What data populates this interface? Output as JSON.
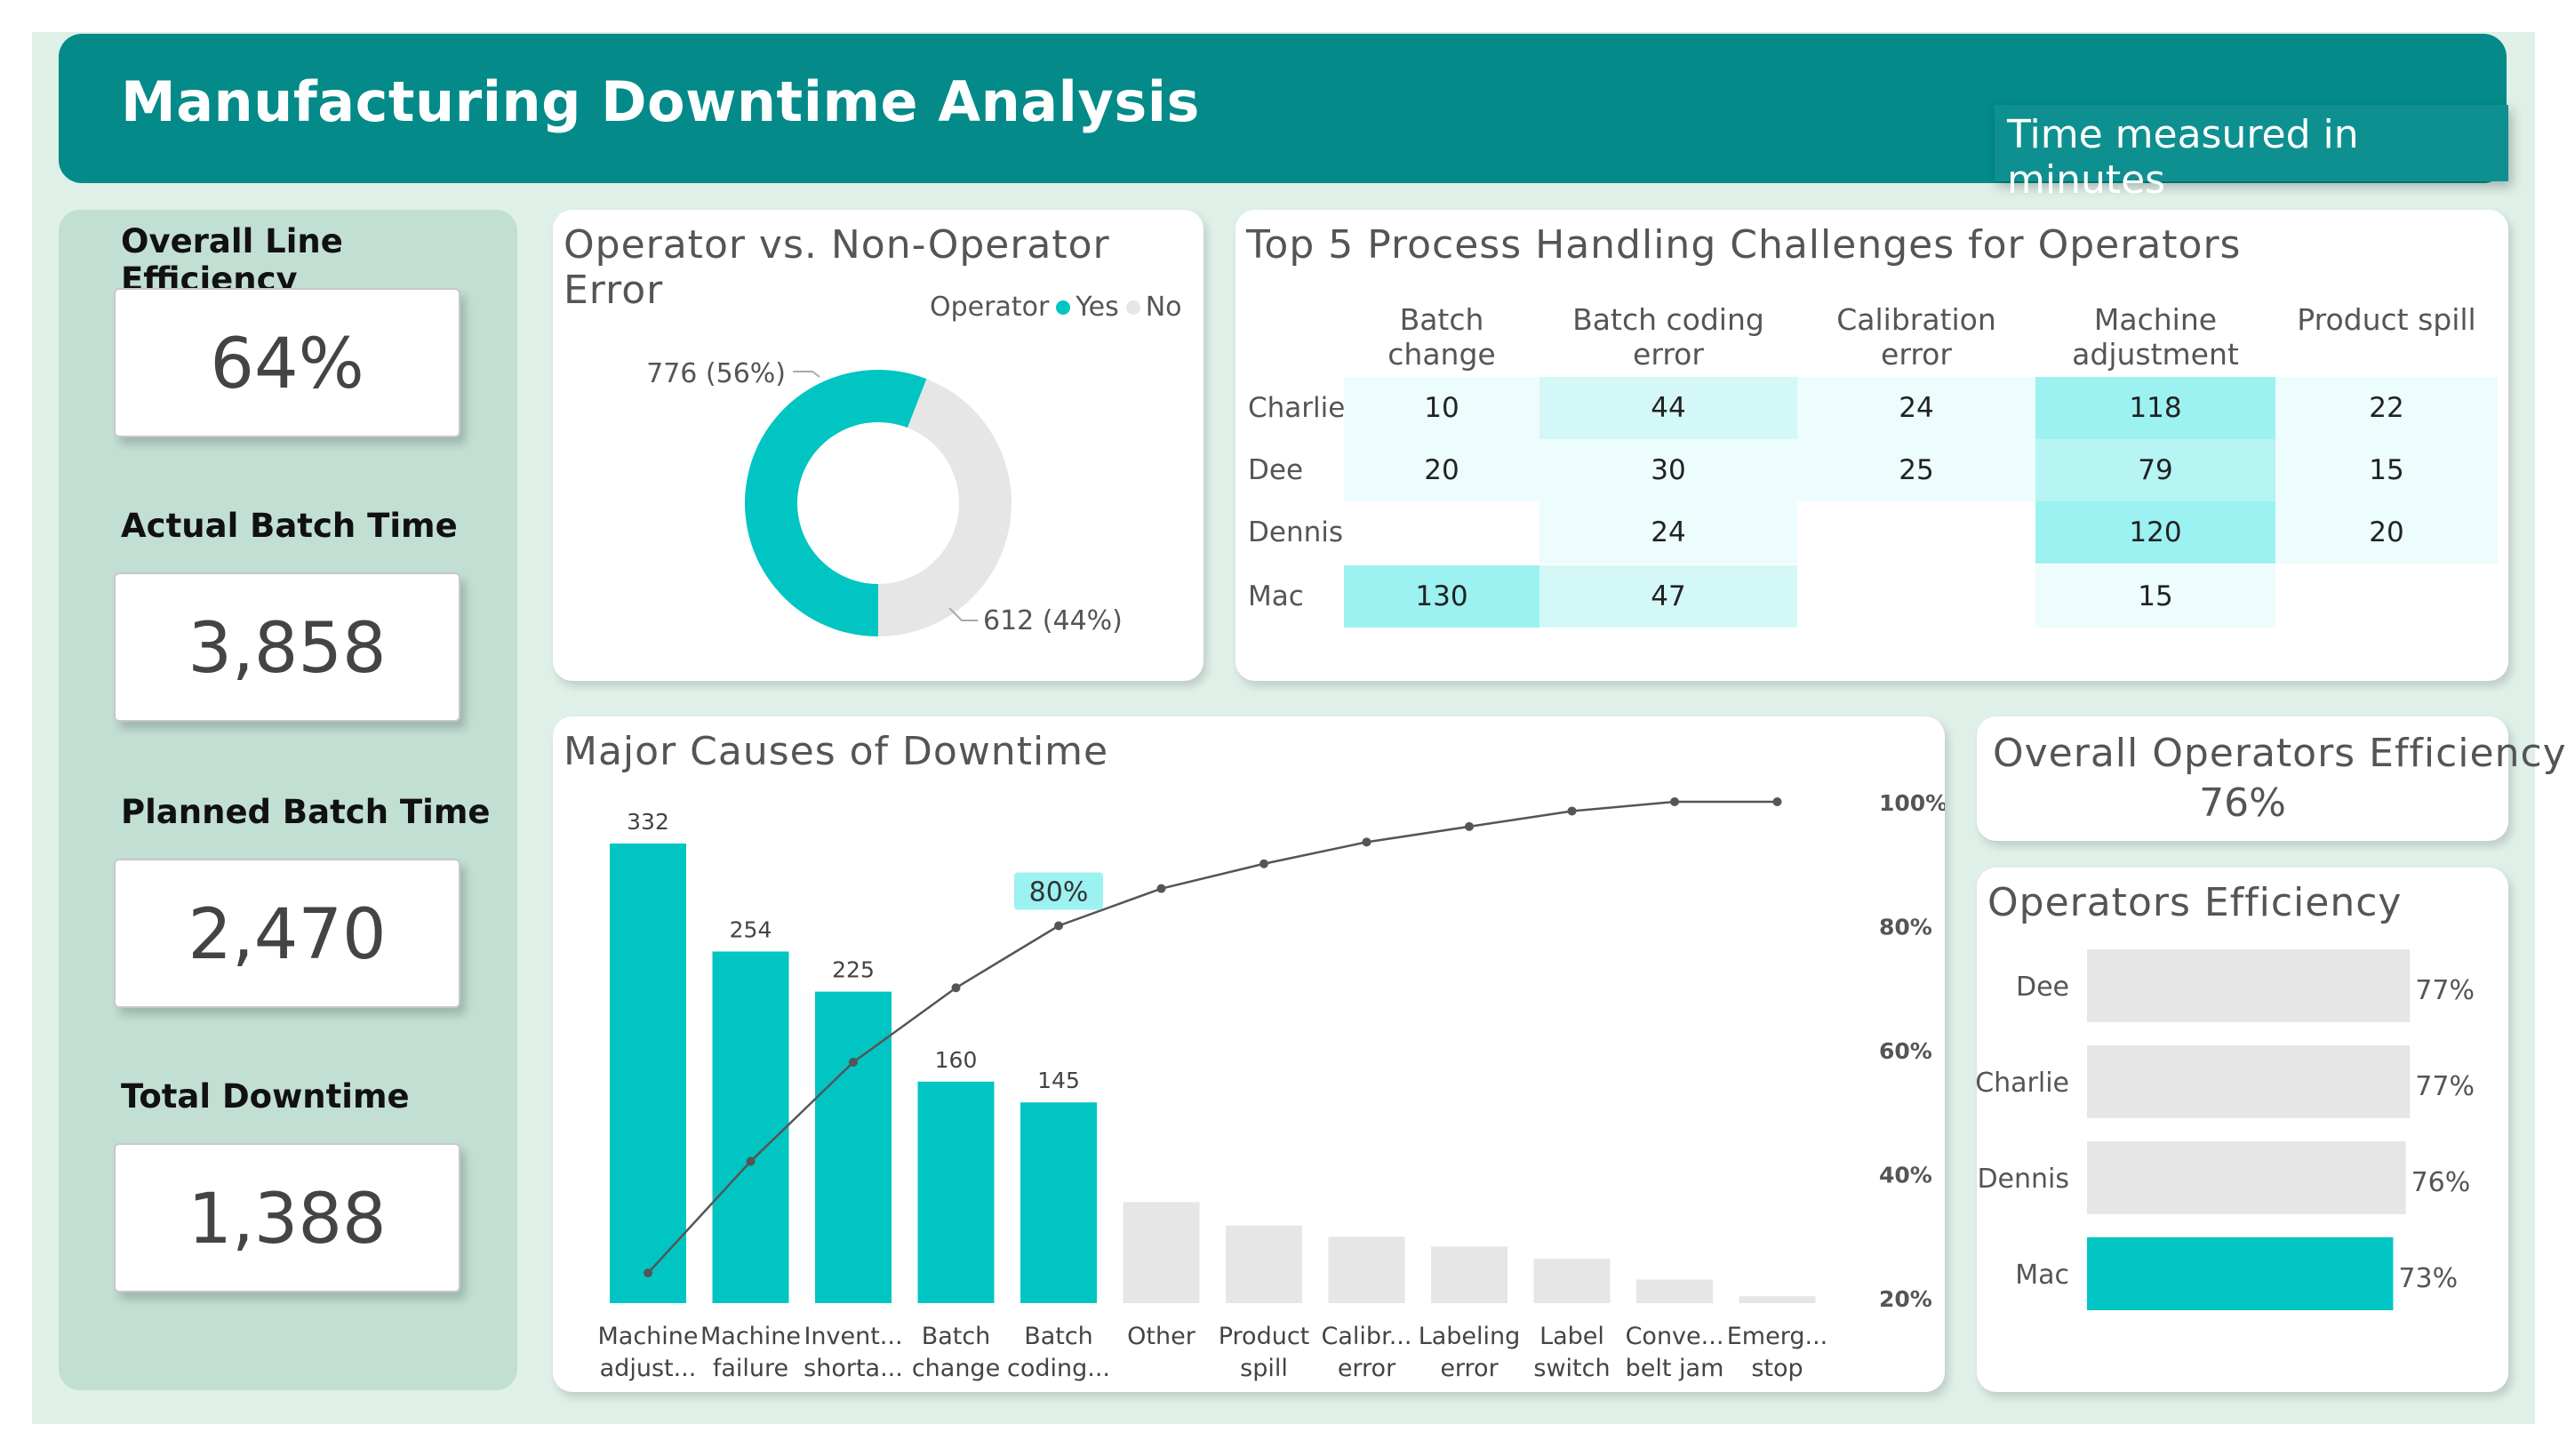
{
  "header": {
    "title": "Manufacturing Downtime Analysis",
    "note": "Time measured in minutes"
  },
  "kpis": [
    {
      "label": "Overall Line Efficiency",
      "value": "64%"
    },
    {
      "label": "Actual Batch Time",
      "value": "3,858"
    },
    {
      "label": "Planned Batch Time",
      "value": "2,470"
    },
    {
      "label": "Total Downtime",
      "value": "1,388"
    }
  ],
  "colors": {
    "teal": "#00c5c3",
    "grey": "#e6e6e6",
    "header": "#038a89",
    "background": "#dff0e8",
    "panel": "#c2dfd3"
  },
  "donut": {
    "title": "Operator vs. Non-Operator Error",
    "legend_title": "Operator",
    "legend": [
      {
        "label": "Yes",
        "color": "#00c5c3"
      },
      {
        "label": "No",
        "color": "#e6e6e6"
      }
    ],
    "chart_data": {
      "type": "pie",
      "title": "Operator vs. Non-Operator Error",
      "slices": [
        {
          "label": "Yes",
          "value": 776,
          "data_label": "776 (56%)"
        },
        {
          "label": "No",
          "value": 612,
          "data_label": "612 (44%)"
        }
      ]
    }
  },
  "matrix": {
    "title": "Top 5 Process Handling Challenges for Operators",
    "chart_data": {
      "type": "table",
      "columns": [
        "Batch change",
        "Batch coding error",
        "Calibration error",
        "Machine adjustment",
        "Product spill"
      ],
      "rows": [
        {
          "name": "Charlie",
          "values": [
            "10",
            "44",
            "24",
            "118",
            "22"
          ]
        },
        {
          "name": "Dee",
          "values": [
            "20",
            "30",
            "25",
            "79",
            "15"
          ]
        },
        {
          "name": "Dennis",
          "values": [
            "",
            "24",
            "",
            "120",
            "20"
          ]
        },
        {
          "name": "Mac",
          "values": [
            "130",
            "47",
            "",
            "15",
            ""
          ]
        }
      ]
    }
  },
  "pareto": {
    "title": "Major Causes of Downtime",
    "callout": "80%",
    "chart_data": {
      "type": "bar",
      "title": "Major Causes of Downtime",
      "categories": [
        [
          "Machine",
          "adjust..."
        ],
        [
          "Machine",
          "failure"
        ],
        [
          "Invent...",
          "shorta..."
        ],
        [
          "Batch",
          "change"
        ],
        [
          "Batch",
          "coding..."
        ],
        [
          "Other",
          ""
        ],
        [
          "Product",
          "spill"
        ],
        [
          "Calibr...",
          "error"
        ],
        [
          "Labeling",
          "error"
        ],
        [
          "Label",
          "switch"
        ],
        [
          "Conve...",
          "belt jam"
        ],
        [
          "Emerg...",
          "stop"
        ]
      ],
      "series": [
        {
          "values": [
            332,
            254,
            225,
            160,
            145,
            73,
            56,
            48,
            41,
            32,
            17,
            5
          ]
        },
        {
          "values": [
            0.24,
            0.42,
            0.58,
            0.7,
            0.8,
            0.86,
            0.9,
            0.935,
            0.96,
            0.985,
            1.0,
            1.0
          ]
        }
      ],
      "data_labels": [
        "332",
        "254",
        "225",
        "160",
        "145"
      ],
      "highlight_count": 5,
      "ylim": [
        0,
        340
      ],
      "y2_ticks": [
        "100%",
        "80%",
        "60%",
        "40%",
        "20%"
      ],
      "y2_values": [
        1.0,
        0.8,
        0.6,
        0.4,
        0.2
      ]
    }
  },
  "overall_operators": {
    "title": "Overall Operators Efficiency",
    "value": "76%"
  },
  "operators": {
    "title": "Operators Efficiency",
    "chart_data": {
      "type": "bar",
      "categories": [
        "Dee",
        "Charlie",
        "Dennis",
        "Mac"
      ],
      "values": [
        0.77,
        0.77,
        0.76,
        0.73
      ],
      "labels": [
        "77%",
        "77%",
        "76%",
        "73%"
      ],
      "highlight": "Mac",
      "xlim": [
        0,
        0.78
      ]
    }
  }
}
